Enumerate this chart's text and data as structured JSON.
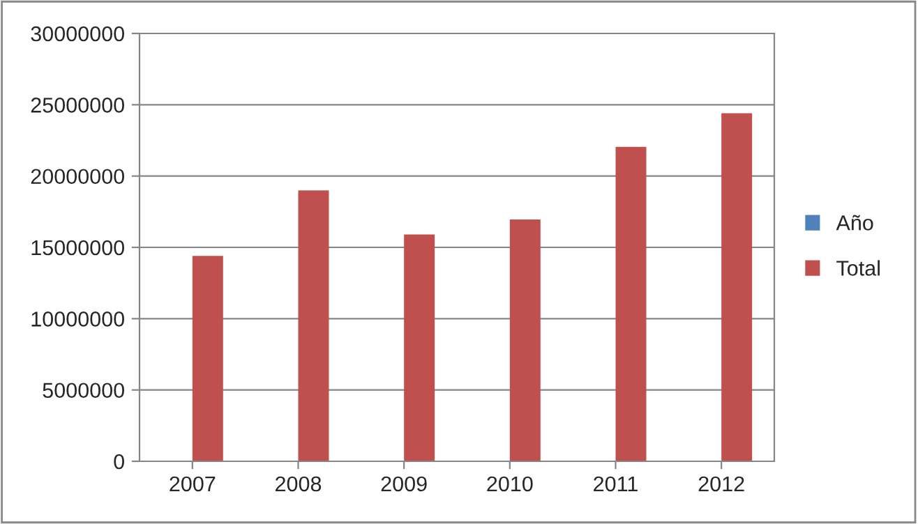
{
  "chart_data": {
    "type": "bar",
    "categories": [
      "2007",
      "2008",
      "2009",
      "2010",
      "2011",
      "2012"
    ],
    "series": [
      {
        "name": "Año",
        "color": "#4f81bd",
        "values": [
          null,
          null,
          null,
          null,
          null,
          null
        ]
      },
      {
        "name": "Total",
        "color": "#c0504d",
        "values": [
          14400000,
          19000000,
          15900000,
          16950000,
          22050000,
          24400000
        ]
      }
    ],
    "ylim": [
      0,
      30000000
    ],
    "yticks": [
      0,
      5000000,
      10000000,
      15000000,
      20000000,
      25000000,
      30000000
    ],
    "grid": "y",
    "legend": "right"
  }
}
